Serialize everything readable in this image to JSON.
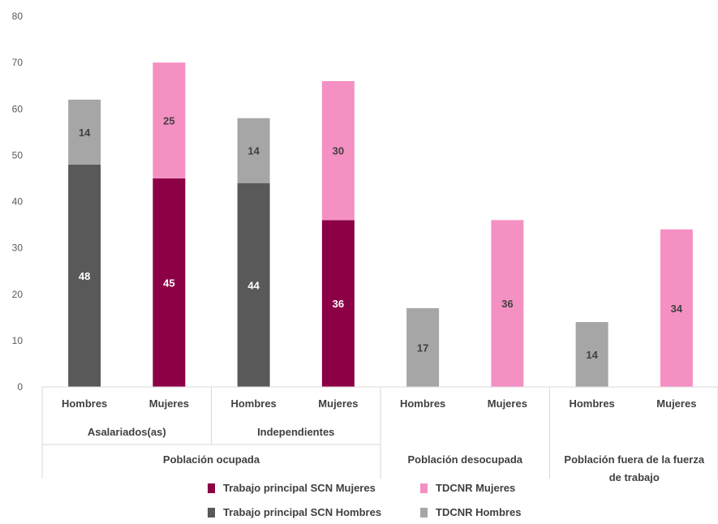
{
  "chart_data": {
    "type": "bar",
    "stacked": true,
    "categories": [
      "Hombres",
      "Mujeres",
      "Hombres",
      "Mujeres",
      "Hombres",
      "Mujeres",
      "Hombres",
      "Mujeres"
    ],
    "subgroups": [
      "Asalariados(as)",
      "Independientes"
    ],
    "groups": [
      "Población ocupada",
      "Población desocupada",
      "Población fuera de la fuerza de trabajo"
    ],
    "series": [
      {
        "name": "Trabajo principal SCN Mujeres",
        "values": [
          0,
          45,
          0,
          36,
          0,
          0,
          0,
          0
        ],
        "color": "#8c0045"
      },
      {
        "name": "TDCNR Mujeres",
        "values": [
          0,
          25,
          0,
          30,
          0,
          36,
          0,
          34
        ],
        "color": "#f590c3"
      },
      {
        "name": "Trabajo principal SCN Hombres",
        "values": [
          48,
          0,
          44,
          0,
          0,
          0,
          0,
          0
        ],
        "color": "#595959"
      },
      {
        "name": "TDCNR Hombres",
        "values": [
          14,
          0,
          14,
          0,
          17,
          0,
          14,
          0
        ],
        "color": "#a6a6a6"
      }
    ],
    "ylim": [
      0,
      80
    ],
    "yticks": [
      0,
      10,
      20,
      30,
      40,
      50,
      60,
      70,
      80
    ],
    "grid": false,
    "legend_position": "bottom",
    "title": "",
    "xlabel": "",
    "ylabel": ""
  }
}
